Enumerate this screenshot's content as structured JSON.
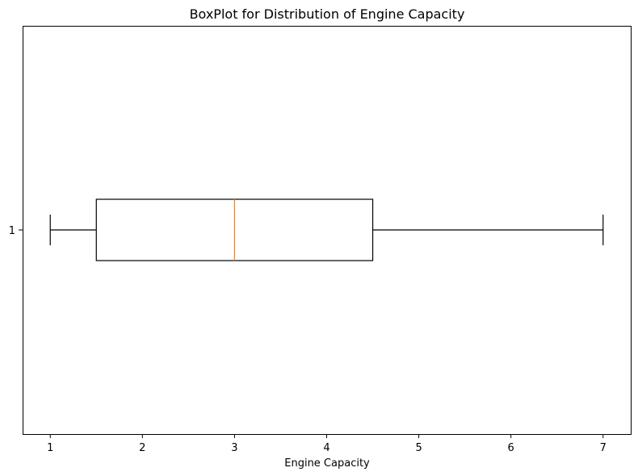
{
  "chart_data": {
    "type": "boxplot",
    "orientation": "horizontal",
    "title": "BoxPlot for Distribution of Engine Capacity",
    "xlabel": "Engine Capacity",
    "ylabel": "",
    "xlim": [
      0.7,
      7.3
    ],
    "xticks": [
      1,
      2,
      3,
      4,
      5,
      6,
      7
    ],
    "categories": [
      "1"
    ],
    "series": [
      {
        "whisker_low": 1.0,
        "q1": 1.5,
        "median": 3.0,
        "q3": 4.5,
        "whisker_high": 7.0
      }
    ],
    "grid": false,
    "colors": {
      "box": "#000000",
      "median": "#ff7f0e",
      "axes": "#000000"
    }
  }
}
